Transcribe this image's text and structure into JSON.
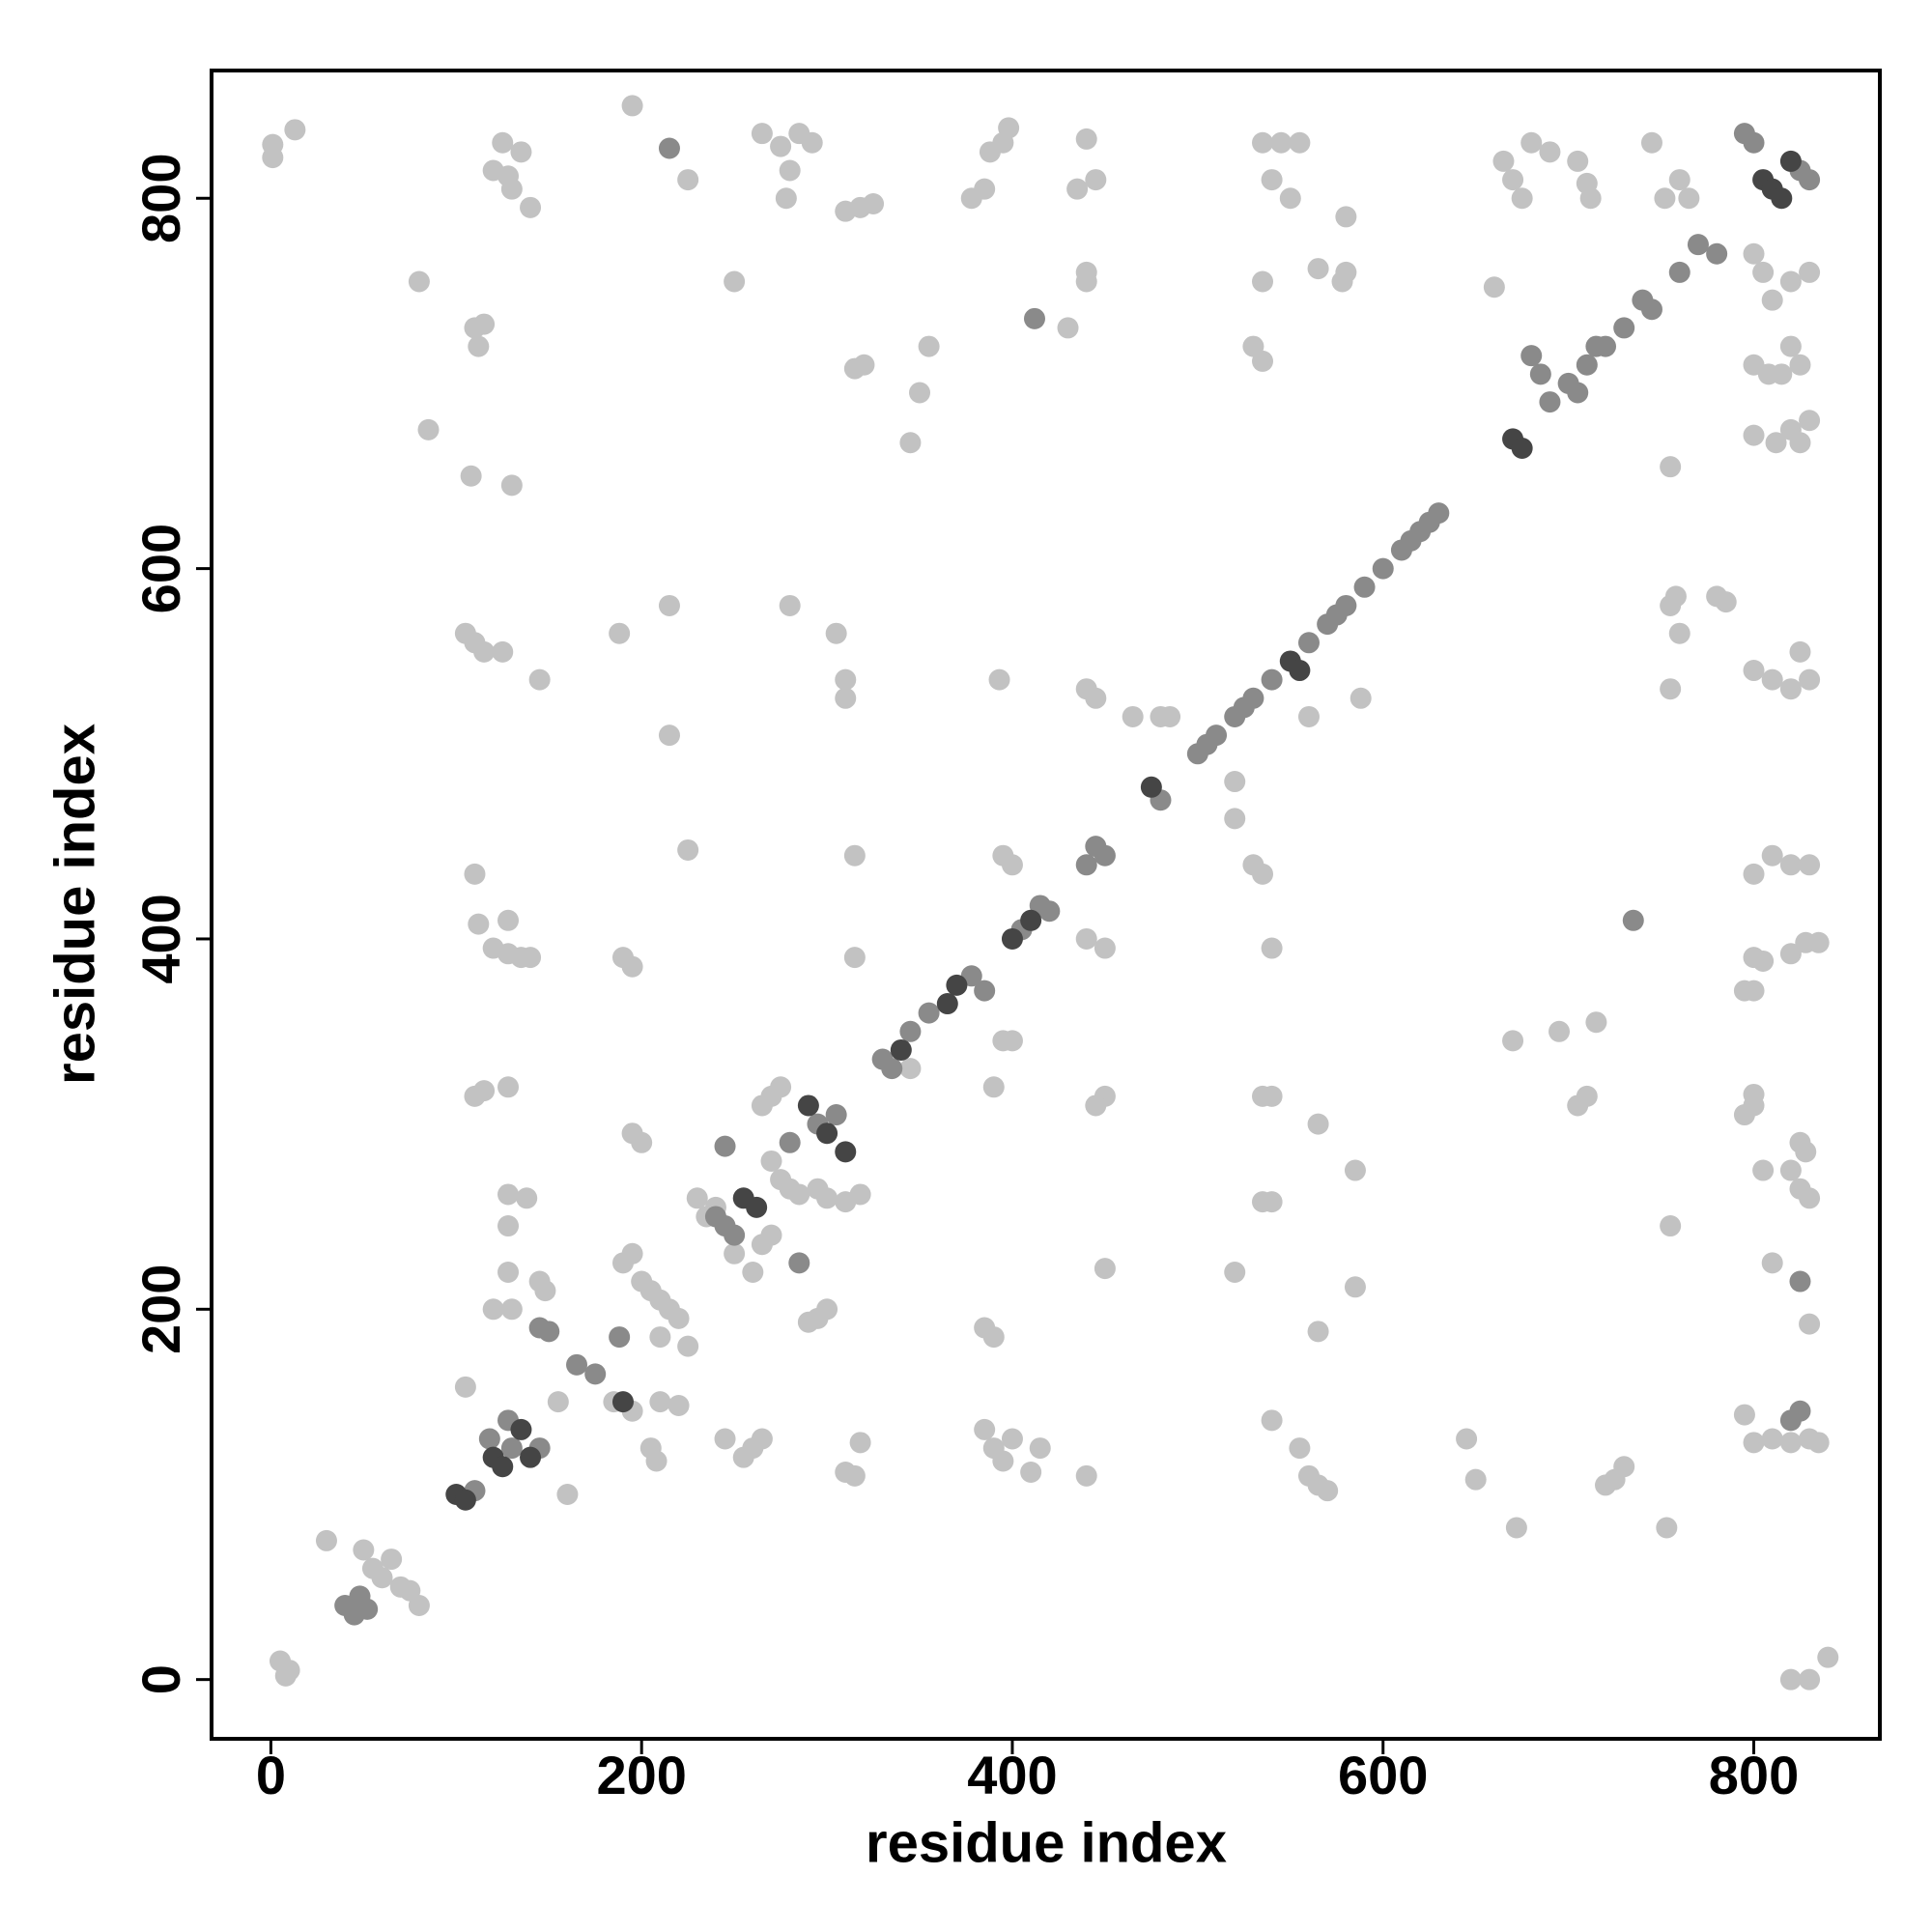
{
  "chart_data": {
    "type": "scatter",
    "xlabel": "residue index",
    "ylabel": "residue index",
    "xlim": [
      -32,
      868
    ],
    "ylim": [
      -32,
      869
    ],
    "xticks": [
      0,
      200,
      400,
      600,
      800
    ],
    "yticks": [
      0,
      200,
      400,
      600,
      800
    ],
    "series": [
      {
        "color": "#c2c2c2",
        "x": [
          1,
          1,
          13,
          5,
          10,
          8,
          80,
          85,
          110,
          112,
          115,
          108,
          130,
          105,
          110,
          115,
          125,
          145,
          110,
          112,
          120,
          128,
          135,
          140,
          128,
          110,
          115,
          128,
          128,
          138,
          128,
          128,
          120,
          130,
          145,
          148,
          105,
          160,
          155,
          125,
          120,
          130,
          135,
          140,
          128,
          195,
          225,
          265,
          275,
          280,
          285,
          292,
          278,
          250,
          310,
          318,
          325,
          388,
          395,
          398,
          385,
          378,
          440,
          445,
          435,
          440,
          440,
          355,
          350,
          345,
          315,
          320,
          430,
          535,
          540,
          545,
          550,
          555,
          565,
          580,
          580,
          578,
          530,
          535,
          535,
          660,
          665,
          670,
          675,
          680,
          690,
          705,
          710,
          712,
          745,
          752,
          760,
          765,
          800,
          805,
          810,
          820,
          830,
          800,
          808,
          815,
          825,
          820,
          800,
          812,
          820,
          830,
          825,
          755,
          30,
          55,
          60,
          65,
          70,
          75,
          80,
          50,
          560,
          465,
          480,
          485,
          520,
          520,
          530,
          535,
          540,
          393,
          440,
          445,
          520,
          565,
          565,
          585,
          585,
          540,
          555,
          560,
          565,
          570,
          535,
          540,
          535,
          540,
          395,
          400,
          440,
          450,
          395,
          400,
          390,
          345,
          315,
          315,
          310,
          310,
          305,
          215,
          280,
          215,
          225,
          188,
          195,
          200,
          190,
          195,
          190,
          195,
          200,
          205,
          210,
          215,
          220,
          210,
          225,
          230,
          235,
          240,
          250,
          260,
          265,
          270,
          265,
          270,
          275,
          270,
          275,
          280,
          285,
          295,
          300,
          295,
          300,
          290,
          310,
          318,
          205,
          208,
          260,
          265,
          245,
          255,
          210,
          220,
          195,
          185,
          310,
          315,
          318,
          385,
          390,
          395,
          400,
          410,
          415,
          440,
          588,
          670,
          695,
          715,
          710,
          705,
          725,
          730,
          720,
          645,
          650,
          672,
          753,
          755,
          755,
          755,
          760,
          758,
          780,
          785,
          800,
          810,
          820,
          825,
          830,
          800,
          810,
          820,
          830,
          800,
          805,
          820,
          828,
          835,
          795,
          800,
          795,
          800,
          800,
          805,
          820,
          828,
          825,
          830,
          825,
          810,
          830,
          795,
          800,
          810,
          820,
          830,
          835,
          820,
          830,
          840,
          450,
          445,
          450,
          385,
          390
        ],
        "values": [
          829,
          822,
          837,
          10,
          5,
          2,
          755,
          675,
          730,
          720,
          732,
          650,
          645,
          565,
          560,
          555,
          555,
          540,
          435,
          408,
          395,
          392,
          390,
          390,
          410,
          315,
          318,
          320,
          262,
          260,
          245,
          220,
          200,
          200,
          215,
          210,
          158,
          100,
          150,
          830,
          815,
          805,
          825,
          795,
          812,
          850,
          810,
          835,
          828,
          815,
          835,
          830,
          800,
          755,
          793,
          795,
          797,
          825,
          830,
          838,
          805,
          800,
          832,
          810,
          805,
          755,
          760,
          720,
          695,
          668,
          708,
          710,
          730,
          830,
          810,
          830,
          800,
          830,
          762,
          790,
          760,
          755,
          720,
          712,
          755,
          752,
          820,
          810,
          800,
          830,
          825,
          820,
          808,
          800,
          830,
          800,
          810,
          800,
          770,
          760,
          745,
          755,
          760,
          710,
          705,
          705,
          710,
          720,
          672,
          668,
          675,
          680,
          668,
          655,
          75,
          60,
          55,
          65,
          50,
          48,
          40,
          70,
          520,
          520,
          520,
          520,
          485,
          465,
          440,
          435,
          395,
          540,
          535,
          530,
          220,
          300,
          188,
          275,
          212,
          140,
          125,
          110,
          105,
          102,
          315,
          315,
          258,
          258,
          445,
          440,
          400,
          395,
          345,
          345,
          320,
          330,
          390,
          445,
          540,
          530,
          565,
          580,
          580,
          510,
          448,
          565,
          295,
          290,
          390,
          385,
          225,
          230,
          215,
          210,
          205,
          200,
          195,
          185,
          180,
          260,
          250,
          255,
          230,
          220,
          235,
          240,
          310,
          315,
          320,
          280,
          270,
          265,
          262,
          265,
          260,
          195,
          200,
          193,
          258,
          262,
          125,
          118,
          125,
          130,
          130,
          120,
          150,
          148,
          145,
          150,
          112,
          110,
          128,
          135,
          125,
          118,
          130,
          112,
          125,
          110,
          530,
          345,
          350,
          355,
          315,
          310,
          108,
          115,
          105,
          130,
          108,
          82,
          82,
          245,
          535,
          580,
          565,
          585,
          585,
          582,
          545,
          540,
          535,
          555,
          540,
          435,
          445,
          440,
          440,
          390,
          388,
          392,
          398,
          398,
          372,
          372,
          305,
          310,
          316,
          275,
          275,
          285,
          265,
          260,
          290,
          225,
          192,
          143,
          128,
          130,
          128,
          130,
          128,
          0,
          0,
          12,
          315,
          310,
          222,
          190,
          185
        ]
      },
      {
        "color": "#8a8a8a",
        "x": [
          110,
          40,
          48,
          45,
          52,
          130,
          145,
          128,
          118,
          150,
          145,
          165,
          175,
          188,
          245,
          250,
          240,
          285,
          295,
          305,
          280,
          245,
          330,
          335,
          345,
          355,
          378,
          385,
          405,
          415,
          420,
          440,
          445,
          450,
          480,
          500,
          505,
          510,
          520,
          525,
          530,
          540,
          560,
          570,
          575,
          580,
          590,
          600,
          610,
          615,
          620,
          625,
          630,
          680,
          685,
          690,
          700,
          705,
          710,
          715,
          720,
          730,
          740,
          745,
          760,
          770,
          780,
          825,
          830,
          800,
          795,
          412,
          735,
          215,
          825,
          825,
          820
        ],
        "values": [
          102,
          40,
          45,
          35,
          38,
          125,
          125,
          140,
          130,
          188,
          190,
          170,
          165,
          185,
          245,
          240,
          250,
          225,
          300,
          305,
          290,
          288,
          335,
          330,
          350,
          360,
          380,
          372,
          405,
          418,
          415,
          440,
          450,
          445,
          475,
          500,
          505,
          510,
          520,
          525,
          530,
          540,
          560,
          570,
          575,
          580,
          590,
          600,
          610,
          615,
          620,
          625,
          630,
          715,
          705,
          690,
          700,
          695,
          710,
          720,
          720,
          730,
          745,
          740,
          760,
          775,
          770,
          815,
          810,
          830,
          835,
          735,
          410,
          827,
          145,
          215,
          140
        ]
      },
      {
        "color": "#454545",
        "x": [
          100,
          105,
          120,
          125,
          135,
          140,
          190,
          255,
          262,
          290,
          300,
          310,
          340,
          365,
          370,
          400,
          410,
          475,
          550,
          555,
          670,
          675,
          805,
          810,
          815,
          820
        ],
        "values": [
          100,
          97,
          120,
          115,
          135,
          120,
          150,
          260,
          255,
          310,
          295,
          285,
          340,
          365,
          375,
          400,
          410,
          482,
          550,
          545,
          670,
          665,
          810,
          805,
          800,
          820
        ]
      }
    ]
  }
}
